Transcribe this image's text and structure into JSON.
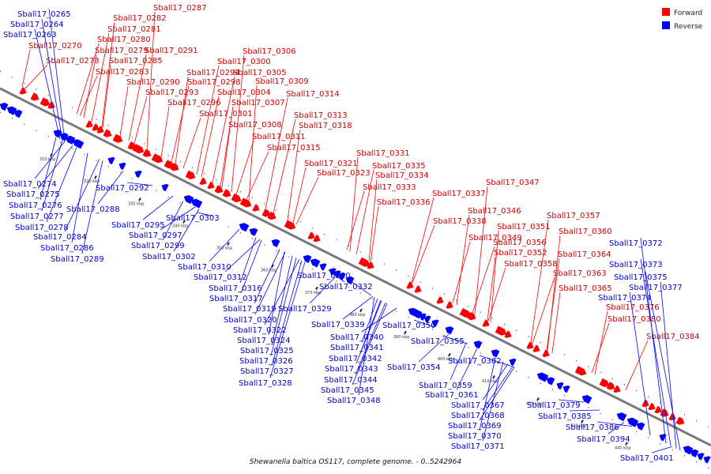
{
  "caption": "Shewanella baltica OS117, complete genome. - 0..5242964",
  "legend": [
    {
      "label": "Forward",
      "color": "#ff0000"
    },
    {
      "label": "Reverse",
      "color": "#0000ff"
    }
  ],
  "colors": {
    "forward": "#ff0000",
    "reverse": "#0000ff",
    "backbone": "#7a7a7a",
    "tick": "#222222"
  },
  "ticks": [
    "310 kbp",
    "320 kbp",
    "330 kbp",
    "340 kbp",
    "350 kbp",
    "360 kbp",
    "370 kbp",
    "380 kbp",
    "390 kbp",
    "400 kbp",
    "410 kbp",
    "420 kbp",
    "430 kbp",
    "440 kbp"
  ],
  "forward_labels": [
    "Sball17_0287",
    "Sball17_0282",
    "Sball17_0281",
    "Sball17_0280",
    "Sball17_0270",
    "Sball17_0279",
    "Sball17_0291",
    "Sball17_0273",
    "Sball17_0285",
    "Sball17_0306",
    "Sball17_0283",
    "Sball17_0300",
    "Sball17_0290",
    "Sball17_0294",
    "Sball17_0298",
    "Sball17_0305",
    "Sball17_0309",
    "Sball17_0293",
    "Sball17_0304",
    "Sball17_0314",
    "Sball17_0296",
    "Sball17_0307",
    "Sball17_0301",
    "Sball17_0313",
    "Sball17_0308",
    "Sball17_0318",
    "Sball17_0311",
    "Sball17_0315",
    "Sball17_0331",
    "Sball17_0321",
    "Sball17_0335",
    "Sball17_0323",
    "Sball17_0334",
    "Sball17_0347",
    "Sball17_0333",
    "Sball17_0337",
    "Sball17_0336",
    "Sball17_0346",
    "Sball17_0357",
    "Sball17_0338",
    "Sball17_0351",
    "Sball17_0360",
    "Sball17_0349",
    "Sball17_0356",
    "Sball17_0352",
    "Sball17_0364",
    "Sball17_0358",
    "Sball17_0363",
    "Sball17_0365",
    "Sball17_0376",
    "Sball17_0380",
    "Sball17_0384"
  ],
  "reverse_labels": [
    "Sball17_0265",
    "Sball17_0264",
    "Sball17_0263",
    "Sball17_0274",
    "Sball17_0275",
    "Sball17_0276",
    "Sball17_0277",
    "Sball17_0288",
    "Sball17_0278",
    "Sball17_0284",
    "Sball17_0286",
    "Sball17_0289",
    "Sball17_0292",
    "Sball17_0295",
    "Sball17_0297",
    "Sball17_0303",
    "Sball17_0299",
    "Sball17_0302",
    "Sball17_0310",
    "Sball17_0312",
    "Sball17_0316",
    "Sball17_0317",
    "Sball17_0319",
    "Sball17_0320",
    "Sball17_0322",
    "Sball17_0324",
    "Sball17_0325",
    "Sball17_0326",
    "Sball17_0327",
    "Sball17_0328",
    "Sball17_0330",
    "Sball17_0332",
    "Sball17_0329",
    "Sball17_0339",
    "Sball17_0340",
    "Sball17_0341",
    "Sball17_0342",
    "Sball17_0343",
    "Sball17_0344",
    "Sball17_0345",
    "Sball17_0348",
    "Sball17_0350",
    "Sball17_0355",
    "Sball17_0354",
    "Sball17_0362",
    "Sball17_0359",
    "Sball17_0361",
    "Sball17_0367",
    "Sball17_0368",
    "Sball17_0369",
    "Sball17_0370",
    "Sball17_0371",
    "Sball17_0372",
    "Sball17_0373",
    "Sball17_0375",
    "Sball17_0377",
    "Sball17_0374",
    "Sball17_0379",
    "Sball17_0385",
    "Sball17_0386",
    "Sball17_0394",
    "Sball17_0401"
  ]
}
